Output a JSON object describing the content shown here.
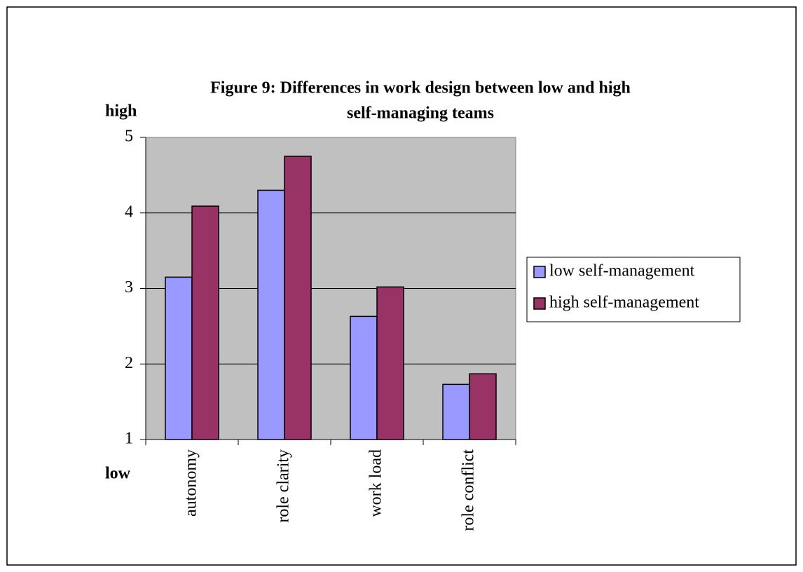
{
  "chart_data": {
    "type": "bar",
    "title": [
      "Figure 9: Differences in work design between low and high",
      "self-managing teams"
    ],
    "annotations": [
      "high",
      "low"
    ],
    "categories": [
      "autonomy",
      "role clarity",
      "work load",
      "role conflict"
    ],
    "series": [
      {
        "name": "low self-management",
        "color": "#9999ff",
        "values": [
          3.15,
          4.3,
          2.63,
          1.73
        ]
      },
      {
        "name": "high self-management",
        "color": "#993366",
        "values": [
          4.09,
          4.75,
          3.02,
          1.87
        ]
      }
    ],
    "ylim": [
      1,
      5
    ],
    "yticks": [
      1,
      2,
      3,
      4,
      5
    ],
    "grid": true,
    "legend": "right"
  }
}
